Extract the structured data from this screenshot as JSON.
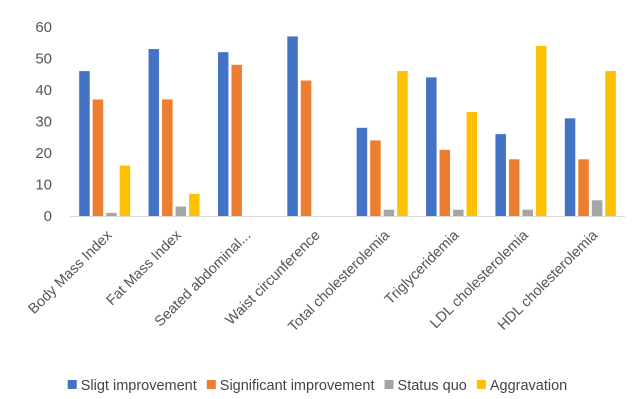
{
  "chart_data": {
    "type": "bar",
    "title": "",
    "xlabel": "",
    "ylabel": "",
    "ylim": [
      0,
      60
    ],
    "yticks": [
      0,
      10,
      20,
      30,
      40,
      50,
      60
    ],
    "grid": false,
    "legend_position": "bottom",
    "categories": [
      "Body Mass Index",
      "Fat Mass Index",
      "Seated abdominal...",
      "Waist circunference",
      "Total cholesterolemia",
      "Triglyceridemia",
      "LDL cholesterolemia",
      "HDL cholesterolemia"
    ],
    "series": [
      {
        "name": "Sligt improvement",
        "color": "#4472C4",
        "values": [
          46,
          53,
          52,
          57,
          28,
          44,
          26,
          31
        ]
      },
      {
        "name": "Significant improvement",
        "color": "#ED7D31",
        "values": [
          37,
          37,
          48,
          43,
          24,
          21,
          18,
          18
        ]
      },
      {
        "name": "Status quo",
        "color": "#A5A5A5",
        "values": [
          1,
          3,
          0,
          0,
          2,
          2,
          2,
          5
        ]
      },
      {
        "name": "Aggravation",
        "color": "#FFC000",
        "values": [
          16,
          7,
          0,
          0,
          46,
          33,
          54,
          46
        ]
      }
    ]
  }
}
